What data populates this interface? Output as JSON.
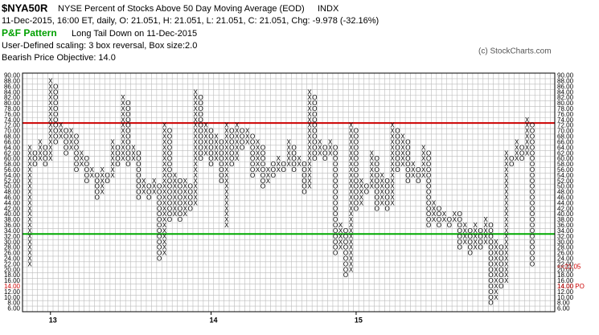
{
  "chart_data": {
    "type": "pnf",
    "symbol": "$NYA50R",
    "title": "NYSE Percent of Stocks Above 50 Day Moving Average (EOD)",
    "exchange": "INDX",
    "quote": "11-Dec-2015, 16:00 ET, daily, O: 21.051, H: 21.051, L: 21.051, C: 21.051, Chg: -9.978 (-32.16%)",
    "pattern_label": "P&F Pattern",
    "pattern": "Long Tail Down on 11-Dec-2015",
    "scaling": "User-Defined scaling: 3 box reversal, Box size:2.0",
    "objective_text": "Bearish Price Objective: 14.0",
    "copyright": "(c) StockCharts.com",
    "box_size": 2,
    "ylim": [
      5,
      91
    ],
    "yticks": [
      {
        "value": 90,
        "label": "90.00"
      },
      {
        "value": 88,
        "label": "88.00"
      },
      {
        "value": 86,
        "label": "86.00"
      },
      {
        "value": 84,
        "label": "84.00"
      },
      {
        "value": 82,
        "label": "82.00"
      },
      {
        "value": 80,
        "label": "80.00"
      },
      {
        "value": 78,
        "label": "78.00"
      },
      {
        "value": 76,
        "label": "76.00"
      },
      {
        "value": 74,
        "label": "74.00"
      },
      {
        "value": 72,
        "label": "72.00"
      },
      {
        "value": 70,
        "label": "70.00"
      },
      {
        "value": 68,
        "label": "68.00"
      },
      {
        "value": 66,
        "label": "66.00"
      },
      {
        "value": 64,
        "label": "64.00"
      },
      {
        "value": 62,
        "label": "62.00"
      },
      {
        "value": 60,
        "label": "60.00"
      },
      {
        "value": 58,
        "label": "58.00"
      },
      {
        "value": 56,
        "label": "56.00"
      },
      {
        "value": 54,
        "label": "54.00"
      },
      {
        "value": 52,
        "label": "52.00"
      },
      {
        "value": 50,
        "label": "50.00"
      },
      {
        "value": 48,
        "label": "48.00"
      },
      {
        "value": 46,
        "label": "46.00"
      },
      {
        "value": 44,
        "label": "44.00"
      },
      {
        "value": 42,
        "label": "42.00"
      },
      {
        "value": 40,
        "label": "40.00"
      },
      {
        "value": 38,
        "label": "38.00"
      },
      {
        "value": 36,
        "label": "36.00"
      },
      {
        "value": 34,
        "label": "34.00"
      },
      {
        "value": 32,
        "label": "32.00"
      },
      {
        "value": 30,
        "label": "30.00"
      },
      {
        "value": 28,
        "label": "28.00"
      },
      {
        "value": 26,
        "label": "26.00"
      },
      {
        "value": 24,
        "label": "24.00"
      },
      {
        "value": 22,
        "label": "22.00"
      },
      {
        "value": 20,
        "label": "20.00"
      },
      {
        "value": 18,
        "label": "18.00"
      },
      {
        "value": 16,
        "label": "16.00"
      },
      {
        "value": 14,
        "label": "14.00"
      },
      {
        "value": 12,
        "label": "12.00"
      },
      {
        "value": 10,
        "label": "10.00"
      },
      {
        "value": 8,
        "label": "8.00"
      },
      {
        "value": 6,
        "label": "6.00"
      }
    ],
    "bull_line": {
      "value": 73,
      "color": "#cc0000"
    },
    "bear_line": {
      "value": 33,
      "color": "#00aa00"
    },
    "price_marker": {
      "value": 21.051,
      "label": "<<21.05",
      "color": "#cc0000"
    },
    "objective_marker": {
      "value": 14,
      "label": "14.00 PO",
      "color": "#cc0000"
    },
    "xlabels": [
      {
        "label": "13",
        "column": 4
      },
      {
        "label": "14",
        "column": 35
      },
      {
        "label": "15",
        "column": 63
      }
    ],
    "columns": [
      {
        "type": "X",
        "low": 22,
        "high": 64
      },
      {
        "type": "O",
        "low": 58,
        "high": 62
      },
      {
        "type": "X",
        "low": 60,
        "high": 66
      },
      {
        "type": "O",
        "low": 58,
        "high": 64
      },
      {
        "type": "X",
        "low": 60,
        "high": 88
      },
      {
        "type": "O",
        "low": 66,
        "high": 86
      },
      {
        "type": "X",
        "low": 68,
        "high": 72
      },
      {
        "type": "O",
        "low": 62,
        "high": 70
      },
      {
        "type": "X",
        "low": 64,
        "high": 70
      },
      {
        "type": "O",
        "low": 56,
        "high": 68
      },
      {
        "type": "X",
        "low": 58,
        "high": 62
      },
      {
        "type": "O",
        "low": 52,
        "high": 60
      },
      {
        "type": "X",
        "low": 54,
        "high": 56
      },
      {
        "type": "O",
        "low": 46,
        "high": 54
      },
      {
        "type": "X",
        "low": 48,
        "high": 56
      },
      {
        "type": "O",
        "low": 52,
        "high": 54
      },
      {
        "type": "X",
        "low": 54,
        "high": 66
      },
      {
        "type": "O",
        "low": 58,
        "high": 64
      },
      {
        "type": "X",
        "low": 60,
        "high": 82
      },
      {
        "type": "O",
        "low": 58,
        "high": 80
      },
      {
        "type": "X",
        "low": 60,
        "high": 64
      },
      {
        "type": "O",
        "low": 46,
        "high": 62
      },
      {
        "type": "X",
        "low": 48,
        "high": 52
      },
      {
        "type": "O",
        "low": 46,
        "high": 50
      },
      {
        "type": "X",
        "low": 48,
        "high": 52
      },
      {
        "type": "O",
        "low": 24,
        "high": 50
      },
      {
        "type": "X",
        "low": 26,
        "high": 72
      },
      {
        "type": "O",
        "low": 38,
        "high": 70
      },
      {
        "type": "X",
        "low": 40,
        "high": 54
      },
      {
        "type": "O",
        "low": 38,
        "high": 52
      },
      {
        "type": "X",
        "low": 40,
        "high": 52
      },
      {
        "type": "O",
        "low": 42,
        "high": 50
      },
      {
        "type": "X",
        "low": 44,
        "high": 84
      },
      {
        "type": "O",
        "low": 60,
        "high": 82
      },
      {
        "type": "X",
        "low": 62,
        "high": 72
      },
      {
        "type": "O",
        "low": 58,
        "high": 70
      },
      {
        "type": "X",
        "low": 60,
        "high": 68
      },
      {
        "type": "O",
        "low": 52,
        "high": 66
      },
      {
        "type": "X",
        "low": 36,
        "high": 72
      },
      {
        "type": "O",
        "low": 58,
        "high": 70
      },
      {
        "type": "X",
        "low": 60,
        "high": 72
      },
      {
        "type": "O",
        "low": 64,
        "high": 70
      },
      {
        "type": "X",
        "low": 66,
        "high": 70
      },
      {
        "type": "O",
        "low": 54,
        "high": 68
      },
      {
        "type": "X",
        "low": 56,
        "high": 66
      },
      {
        "type": "O",
        "low": 50,
        "high": 64
      },
      {
        "type": "X",
        "low": 52,
        "high": 56
      },
      {
        "type": "O",
        "low": 54,
        "high": 58
      },
      {
        "type": "X",
        "low": 56,
        "high": 60
      },
      {
        "type": "O",
        "low": 56,
        "high": 58
      },
      {
        "type": "X",
        "low": 58,
        "high": 66
      },
      {
        "type": "O",
        "low": 56,
        "high": 64
      },
      {
        "type": "X",
        "low": 58,
        "high": 60
      },
      {
        "type": "O",
        "low": 48,
        "high": 58
      },
      {
        "type": "X",
        "low": 50,
        "high": 84
      },
      {
        "type": "O",
        "low": 60,
        "high": 82
      },
      {
        "type": "X",
        "low": 62,
        "high": 66
      },
      {
        "type": "O",
        "low": 60,
        "high": 64
      },
      {
        "type": "X",
        "low": 62,
        "high": 66
      },
      {
        "type": "O",
        "low": 26,
        "high": 64
      },
      {
        "type": "X",
        "low": 28,
        "high": 36
      },
      {
        "type": "O",
        "low": 18,
        "high": 34
      },
      {
        "type": "X",
        "low": 20,
        "high": 72
      },
      {
        "type": "O",
        "low": 42,
        "high": 70
      },
      {
        "type": "X",
        "low": 44,
        "high": 52
      },
      {
        "type": "O",
        "low": 48,
        "high": 50
      },
      {
        "type": "X",
        "low": 50,
        "high": 62
      },
      {
        "type": "O",
        "low": 42,
        "high": 60
      },
      {
        "type": "X",
        "low": 44,
        "high": 54
      },
      {
        "type": "O",
        "low": 42,
        "high": 52
      },
      {
        "type": "X",
        "low": 44,
        "high": 72
      },
      {
        "type": "O",
        "low": 56,
        "high": 70
      },
      {
        "type": "X",
        "low": 58,
        "high": 68
      },
      {
        "type": "O",
        "low": 52,
        "high": 66
      },
      {
        "type": "X",
        "low": 54,
        "high": 58
      },
      {
        "type": "O",
        "low": 52,
        "high": 56
      },
      {
        "type": "X",
        "low": 54,
        "high": 64
      },
      {
        "type": "O",
        "low": 36,
        "high": 62
      },
      {
        "type": "X",
        "low": 38,
        "high": 44
      },
      {
        "type": "O",
        "low": 36,
        "high": 42
      },
      {
        "type": "X",
        "low": 38,
        "high": 40
      },
      {
        "type": "O",
        "low": 36,
        "high": 38
      },
      {
        "type": "X",
        "low": 38,
        "high": 40
      },
      {
        "type": "O",
        "low": 28,
        "high": 40
      },
      {
        "type": "X",
        "low": 30,
        "high": 36
      },
      {
        "type": "O",
        "low": 26,
        "high": 34
      },
      {
        "type": "X",
        "low": 28,
        "high": 36
      },
      {
        "type": "O",
        "low": 28,
        "high": 34
      },
      {
        "type": "X",
        "low": 30,
        "high": 38
      },
      {
        "type": "O",
        "low": 8,
        "high": 36
      },
      {
        "type": "X",
        "low": 10,
        "high": 30
      },
      {
        "type": "O",
        "low": 14,
        "high": 28
      },
      {
        "type": "X",
        "low": 16,
        "high": 62
      },
      {
        "type": "O",
        "low": 58,
        "high": 60
      },
      {
        "type": "X",
        "low": 60,
        "high": 66
      },
      {
        "type": "O",
        "low": 60,
        "high": 64
      },
      {
        "type": "X",
        "low": 62,
        "high": 74
      },
      {
        "type": "O",
        "low": 22,
        "high": 72
      }
    ]
  }
}
